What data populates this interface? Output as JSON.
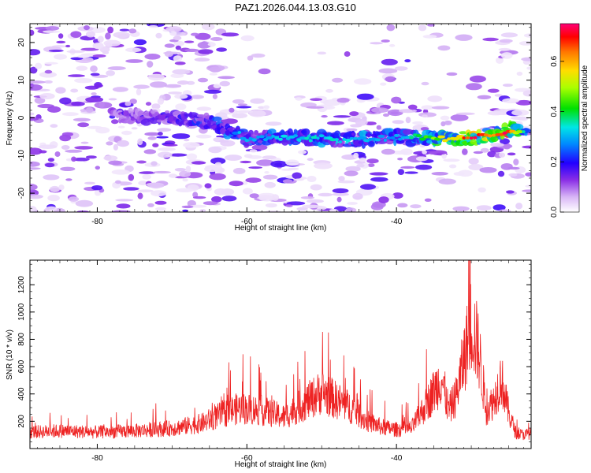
{
  "title": "PAZ1.2026.044.13.03.G10",
  "chart_data": [
    {
      "type": "heatmap",
      "xlabel": "Height of straight line (km)",
      "ylabel": "Frequency (Hz)",
      "xlim": [
        -89,
        -22
      ],
      "ylim": [
        -25,
        25
      ],
      "xticks": [
        -80,
        -60,
        -40
      ],
      "xtick_labels": [
        "-80",
        "-60",
        "-40"
      ],
      "yticks": [
        -20,
        -10,
        0,
        10,
        20
      ],
      "ytick_labels": [
        "-20",
        "-10",
        "0",
        "10",
        "20"
      ],
      "colorbar": {
        "label": "Normalized spectral amplitude",
        "range": [
          0.0,
          0.75
        ],
        "ticks": [
          0.0,
          0.2,
          0.4,
          0.6
        ],
        "tick_labels": [
          "0.0",
          "0.2",
          "0.4",
          "0.6"
        ]
      },
      "signal_track": [
        {
          "x": -75,
          "freq": 0.5,
          "amp": 0.18
        },
        {
          "x": -70,
          "freq": 0.0,
          "amp": 0.22
        },
        {
          "x": -65,
          "freq": -1.0,
          "amp": 0.25
        },
        {
          "x": -60,
          "freq": -5.5,
          "amp": 0.3
        },
        {
          "x": -55,
          "freq": -5.0,
          "amp": 0.32
        },
        {
          "x": -50,
          "freq": -5.5,
          "amp": 0.33
        },
        {
          "x": -45,
          "freq": -5.8,
          "amp": 0.31
        },
        {
          "x": -40,
          "freq": -5.0,
          "amp": 0.28
        },
        {
          "x": -35,
          "freq": -5.5,
          "amp": 0.45
        },
        {
          "x": -30,
          "freq": -5.5,
          "amp": 0.68
        },
        {
          "x": -27,
          "freq": -4.5,
          "amp": 0.62
        },
        {
          "x": -25,
          "freq": -3.0,
          "amp": 0.72
        },
        {
          "x": -23,
          "freq": -3.5,
          "amp": 0.35
        }
      ]
    },
    {
      "type": "line",
      "xlabel": "Height of straight line (km)",
      "ylabel": "SNR (10 * v/v)",
      "xlim": [
        -89,
        -22
      ],
      "ylim": [
        0,
        1380
      ],
      "xticks": [
        -80,
        -60,
        -40
      ],
      "xtick_labels": [
        "-80",
        "-60",
        "-40"
      ],
      "yticks": [
        200,
        400,
        600,
        800,
        1000,
        1200
      ],
      "ytick_labels": [
        "200",
        "400",
        "600",
        "800",
        "1000",
        "1200"
      ],
      "series": [
        {
          "name": "SNR",
          "color": "#ee2222",
          "envelope_x": [
            -89,
            -85,
            -80,
            -75,
            -70,
            -66,
            -63,
            -61,
            -58,
            -55,
            -53,
            -50,
            -48,
            -46,
            -44,
            -42,
            -40,
            -38,
            -36,
            -34,
            -33,
            -32,
            -31,
            -30,
            -29,
            -28,
            -27,
            -26,
            -25,
            -24,
            -23,
            -22
          ],
          "envelope_y": [
            130,
            140,
            130,
            140,
            160,
            200,
            280,
            320,
            300,
            250,
            330,
            450,
            380,
            320,
            220,
            170,
            150,
            160,
            350,
            560,
            300,
            420,
            700,
            1000,
            780,
            300,
            380,
            560,
            280,
            120,
            110,
            120
          ]
        }
      ]
    }
  ]
}
